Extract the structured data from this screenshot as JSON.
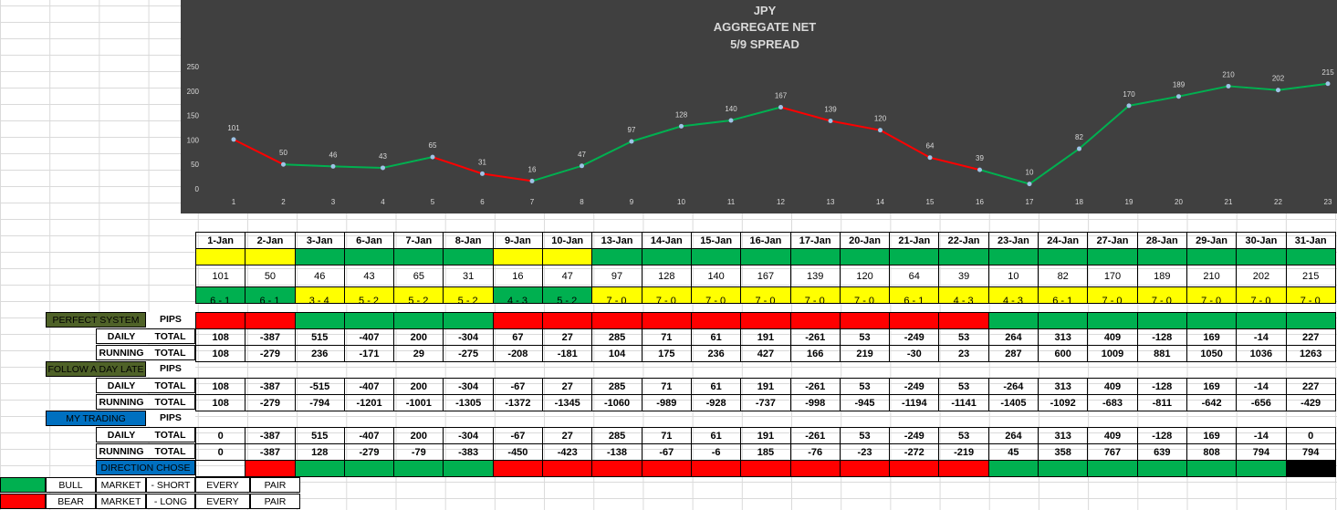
{
  "chart_data": {
    "type": "line",
    "title": "JPY",
    "subtitle": [
      "AGGREGATE NET",
      "5/9 SPREAD"
    ],
    "x": [
      1,
      2,
      3,
      4,
      5,
      6,
      7,
      8,
      9,
      10,
      11,
      12,
      13,
      14,
      15,
      16,
      17,
      18,
      19,
      20,
      21,
      22,
      23
    ],
    "values": [
      101,
      50,
      46,
      43,
      65,
      31,
      16,
      47,
      97,
      128,
      140,
      167,
      139,
      120,
      64,
      39,
      10,
      82,
      170,
      189,
      210,
      202,
      215
    ],
    "y_ticks": [
      0,
      50,
      100,
      150,
      200,
      250
    ],
    "ylim": [
      0,
      250
    ],
    "segment_colors": [
      "red",
      "green",
      "green",
      "green",
      "red",
      "red",
      "green",
      "green",
      "green",
      "green",
      "green",
      "red",
      "red",
      "red",
      "red",
      "green",
      "green",
      "green",
      "green",
      "green",
      "green",
      "green"
    ],
    "colors": {
      "up": "#00b050",
      "down": "#ff0000",
      "background": "#404040",
      "marker": "#9dc3e6",
      "text": "#d9d9d9"
    },
    "grid": false
  },
  "dates": [
    "1-Jan",
    "2-Jan",
    "3-Jan",
    "6-Jan",
    "7-Jan",
    "8-Jan",
    "9-Jan",
    "10-Jan",
    "13-Jan",
    "14-Jan",
    "15-Jan",
    "16-Jan",
    "17-Jan",
    "20-Jan",
    "21-Jan",
    "22-Jan",
    "23-Jan",
    "24-Jan",
    "27-Jan",
    "28-Jan",
    "29-Jan",
    "30-Jan",
    "31-Jan"
  ],
  "top_colors": [
    "y",
    "y",
    "g",
    "g",
    "g",
    "g",
    "y",
    "y",
    "g",
    "g",
    "g",
    "g",
    "g",
    "g",
    "g",
    "g",
    "g",
    "g",
    "g",
    "g",
    "g",
    "g",
    "g"
  ],
  "net_values": [
    "101",
    "50",
    "46",
    "43",
    "65",
    "31",
    "16",
    "47",
    "97",
    "128",
    "140",
    "167",
    "139",
    "120",
    "64",
    "39",
    "10",
    "82",
    "170",
    "189",
    "210",
    "202",
    "215"
  ],
  "bottom_colors": [
    "g",
    "g",
    "y",
    "y",
    "y",
    "y",
    "g",
    "g",
    "y",
    "y",
    "y",
    "y",
    "y",
    "y",
    "y",
    "y",
    "y",
    "y",
    "y",
    "y",
    "y",
    "y",
    "y"
  ],
  "spreads": [
    "6 - 1",
    "6 - 1",
    "3 - 4",
    "5 - 2",
    "5 - 2",
    "5 - 2",
    "4 - 3",
    "5 - 2",
    "7 - 0",
    "7 - 0",
    "7 - 0",
    "7 - 0",
    "7 - 0",
    "7 - 0",
    "6 - 1",
    "4 - 3",
    "4 - 3",
    "6 - 1",
    "7 - 0",
    "7 - 0",
    "7 - 0",
    "7 - 0",
    "7 - 0"
  ],
  "sections": {
    "perfect": {
      "title": "PERFECT  SYSTEM",
      "pips": "PIPS",
      "colors": [
        "r",
        "r",
        "g",
        "g",
        "g",
        "g",
        "r",
        "r",
        "r",
        "r",
        "r",
        "r",
        "r",
        "r",
        "r",
        "r",
        "g",
        "g",
        "g",
        "g",
        "g",
        "g",
        "g"
      ],
      "daily": [
        "108",
        "-387",
        "515",
        "-407",
        "200",
        "-304",
        "67",
        "27",
        "285",
        "71",
        "61",
        "191",
        "-261",
        "53",
        "-249",
        "53",
        "264",
        "313",
        "409",
        "-128",
        "169",
        "-14",
        "227"
      ],
      "running": [
        "108",
        "-279",
        "236",
        "-171",
        "29",
        "-275",
        "-208",
        "-181",
        "104",
        "175",
        "236",
        "427",
        "166",
        "219",
        "-30",
        "23",
        "287",
        "600",
        "1009",
        "881",
        "1050",
        "1036",
        "1263"
      ]
    },
    "late": {
      "title": "FOLLOW A DAY LATE",
      "pips": "PIPS",
      "daily": [
        "108",
        "-387",
        "-515",
        "-407",
        "200",
        "-304",
        "-67",
        "27",
        "285",
        "71",
        "61",
        "191",
        "-261",
        "53",
        "-249",
        "53",
        "-264",
        "313",
        "409",
        "-128",
        "169",
        "-14",
        "227"
      ],
      "running": [
        "108",
        "-279",
        "-794",
        "-1201",
        "-1001",
        "-1305",
        "-1372",
        "-1345",
        "-1060",
        "-989",
        "-928",
        "-737",
        "-998",
        "-945",
        "-1194",
        "-1141",
        "-1405",
        "-1092",
        "-683",
        "-811",
        "-642",
        "-656",
        "-429"
      ]
    },
    "mine": {
      "title": "MY TRADING",
      "pips": "PIPS",
      "daily": [
        "0",
        "-387",
        "515",
        "-407",
        "200",
        "-304",
        "-67",
        "27",
        "285",
        "71",
        "61",
        "191",
        "-261",
        "53",
        "-249",
        "53",
        "264",
        "313",
        "409",
        "-128",
        "169",
        "-14",
        "0"
      ],
      "running": [
        "0",
        "-387",
        "128",
        "-279",
        "-79",
        "-383",
        "-450",
        "-423",
        "-138",
        "-67",
        "-6",
        "185",
        "-76",
        "-23",
        "-272",
        "-219",
        "45",
        "358",
        "767",
        "639",
        "808",
        "794",
        "794"
      ]
    },
    "direction": {
      "title": "DIRECTION CHOSE",
      "colors": [
        "w",
        "r",
        "g",
        "g",
        "g",
        "g",
        "r",
        "r",
        "r",
        "r",
        "r",
        "r",
        "r",
        "r",
        "r",
        "r",
        "g",
        "g",
        "g",
        "g",
        "g",
        "g",
        "k"
      ]
    }
  },
  "row_labels": {
    "daily": "DAILY",
    "running": "RUNNING",
    "total": "TOTAL"
  },
  "legend": {
    "bull": [
      "BULL",
      "MARKET",
      "- SHORT",
      "EVERY",
      "PAIR"
    ],
    "bear": [
      "BEAR",
      "MARKET",
      "- LONG",
      "EVERY",
      "PAIR"
    ]
  }
}
